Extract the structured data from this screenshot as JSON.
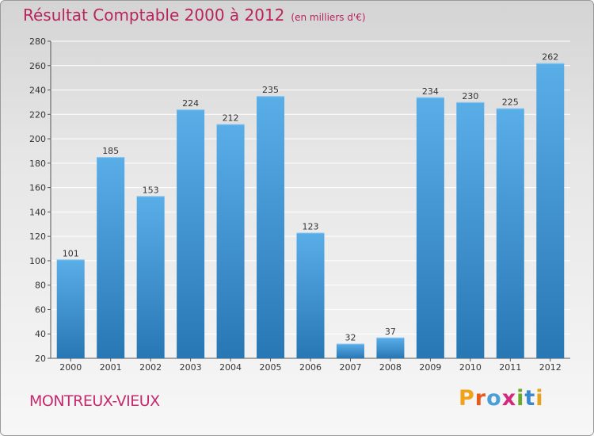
{
  "header": {
    "title": "Résultat Comptable 2000 à 2012",
    "unit": "(en milliers d'€)"
  },
  "footer": {
    "town": "MONTREUX-VIEUX",
    "logo": [
      "P",
      "r",
      "o",
      "x",
      "i",
      "t",
      "i"
    ]
  },
  "colors": {
    "accent": "#b8245c",
    "bar_light": "#5aaee8",
    "bar_dark": "#2877b5",
    "logo_letters": [
      "#f0a21a",
      "#e85a1c",
      "#4a9fd8",
      "#d42a7e",
      "#6aaa2a",
      "#3a88cc",
      "#e8a21a"
    ]
  },
  "chart_data": {
    "type": "bar",
    "title": "Résultat Comptable 2000 à 2012",
    "xlabel": "",
    "ylabel": "",
    "categories": [
      "2000",
      "2001",
      "2002",
      "2003",
      "2004",
      "2005",
      "2006",
      "2007",
      "2008",
      "2009",
      "2010",
      "2011",
      "2012"
    ],
    "values": [
      101,
      185,
      153,
      224,
      212,
      235,
      123,
      32,
      37,
      234,
      230,
      225,
      262
    ],
    "ylim": [
      20,
      280
    ],
    "yticks": [
      20,
      40,
      60,
      80,
      100,
      120,
      140,
      160,
      180,
      200,
      220,
      240,
      260,
      280
    ],
    "grid": true
  }
}
